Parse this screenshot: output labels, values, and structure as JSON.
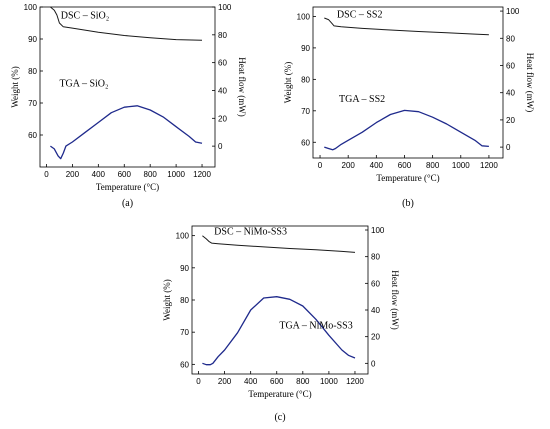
{
  "chart_data": [
    {
      "type": "line",
      "panel_label": "(a)",
      "xlabel": "Temperature (°C)",
      "ylabel_left": "Weight (%)",
      "ylabel_right": "Heat flow (mW)",
      "xlim": [
        -50,
        1300
      ],
      "ylim_left": [
        50,
        100
      ],
      "ylim_right": [
        -15,
        100
      ],
      "x_ticks": [
        0,
        200,
        400,
        600,
        800,
        1000,
        1200
      ],
      "y_ticks_left": [
        60,
        70,
        80,
        90,
        100
      ],
      "y_ticks_right": [
        0,
        20,
        40,
        60,
        80,
        100
      ],
      "series": [
        {
          "name": "DSC – SiO₂",
          "axis": "left",
          "color": "#1a1a1a",
          "x": [
            30,
            60,
            80,
            100,
            130,
            200,
            400,
            600,
            800,
            1000,
            1200
          ],
          "y": [
            100,
            99,
            97.5,
            95,
            93.8,
            93.4,
            92.1,
            91.1,
            90.4,
            89.8,
            89.6
          ]
        },
        {
          "name": "TGA – SiO₂",
          "axis": "right",
          "color": "#1f2a8c",
          "x": [
            30,
            60,
            90,
            110,
            130,
            150,
            200,
            300,
            400,
            500,
            600,
            700,
            800,
            900,
            1000,
            1100,
            1150,
            1200
          ],
          "y": [
            0,
            -2,
            -7,
            -9,
            -5,
            0,
            3,
            10,
            17,
            24,
            28,
            29,
            26,
            21,
            14,
            7,
            3,
            2
          ]
        }
      ]
    },
    {
      "type": "line",
      "panel_label": "(b)",
      "xlabel": "Temperature (°C)",
      "ylabel_left": "Weight (%)",
      "ylabel_right": "Heat flow (mW)",
      "xlim": [
        -50,
        1300
      ],
      "ylim_left": [
        55,
        103
      ],
      "ylim_right": [
        -8,
        103
      ],
      "x_ticks": [
        0,
        200,
        400,
        600,
        800,
        1000,
        1200
      ],
      "y_ticks_left": [
        60,
        70,
        80,
        90,
        100
      ],
      "y_ticks_right": [
        0,
        20,
        40,
        60,
        80,
        100
      ],
      "series": [
        {
          "name": "DSC – SS2",
          "axis": "left",
          "color": "#1a1a1a",
          "x": [
            30,
            60,
            80,
            100,
            150,
            300,
            500,
            700,
            900,
            1100,
            1200
          ],
          "y": [
            99.5,
            99,
            98,
            97,
            96.7,
            96.2,
            95.7,
            95.2,
            94.8,
            94.4,
            94.2
          ]
        },
        {
          "name": "TGA – SS2",
          "axis": "right",
          "color": "#1f2a8c",
          "x": [
            30,
            60,
            90,
            110,
            150,
            200,
            300,
            400,
            500,
            600,
            700,
            800,
            900,
            1000,
            1100,
            1150,
            1200
          ],
          "y": [
            0,
            -1,
            -2,
            -1,
            2,
            5,
            11,
            18,
            24,
            27,
            26,
            22,
            17,
            11,
            5,
            1,
            0.5
          ]
        }
      ]
    },
    {
      "type": "line",
      "panel_label": "(c)",
      "xlabel": "Temperature (°C)",
      "ylabel_left": "Weight (%)",
      "ylabel_right": "Heat flow (mW)",
      "xlim": [
        -50,
        1300
      ],
      "ylim_left": [
        57,
        103
      ],
      "ylim_right": [
        -8,
        103
      ],
      "x_ticks": [
        0,
        200,
        400,
        600,
        800,
        1000,
        1200
      ],
      "y_ticks_left": [
        60,
        70,
        80,
        90,
        100
      ],
      "y_ticks_right": [
        0,
        20,
        40,
        60,
        80,
        100
      ],
      "series": [
        {
          "name": "DSC – NiMo-SS3",
          "axis": "left",
          "color": "#1a1a1a",
          "x": [
            30,
            60,
            80,
            100,
            150,
            300,
            500,
            700,
            900,
            1100,
            1200
          ],
          "y": [
            100,
            99,
            98.2,
            97.7,
            97.5,
            97,
            96.5,
            96,
            95.6,
            95.1,
            94.8
          ]
        },
        {
          "name": "TGA – NiMo-SS3",
          "axis": "right",
          "color": "#1f2a8c",
          "x": [
            30,
            60,
            90,
            110,
            150,
            200,
            300,
            400,
            500,
            600,
            700,
            800,
            900,
            1000,
            1100,
            1150,
            1200
          ],
          "y": [
            0,
            -1,
            -1,
            0,
            5,
            10,
            23,
            40,
            49,
            50,
            48,
            43,
            33,
            21,
            10,
            6,
            4
          ]
        }
      ]
    }
  ]
}
